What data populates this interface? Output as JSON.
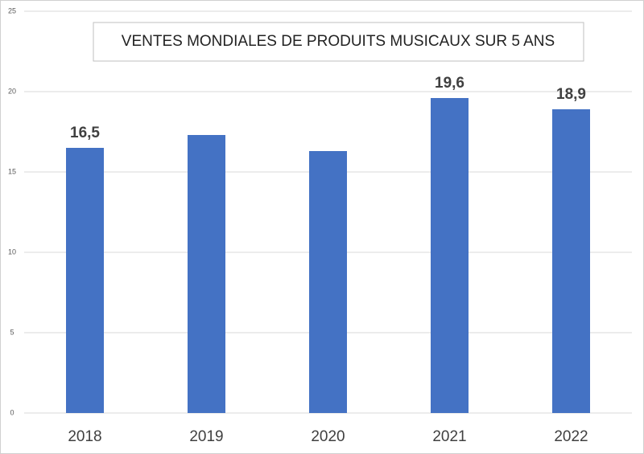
{
  "chart_data": {
    "type": "bar",
    "title": "VENTES MONDIALES DE PRODUITS MUSICAUX SUR 5 ANS",
    "categories": [
      "2018",
      "2019",
      "2020",
      "2021",
      "2022"
    ],
    "values": [
      16.5,
      17.3,
      16.3,
      19.6,
      18.9
    ],
    "value_labels": [
      "16,5",
      null,
      null,
      "19,6",
      "18,9"
    ],
    "color": "#4472c4",
    "ylim": [
      0,
      25
    ],
    "yticks": [
      0,
      5,
      10,
      15,
      20,
      25
    ],
    "grid": true
  }
}
